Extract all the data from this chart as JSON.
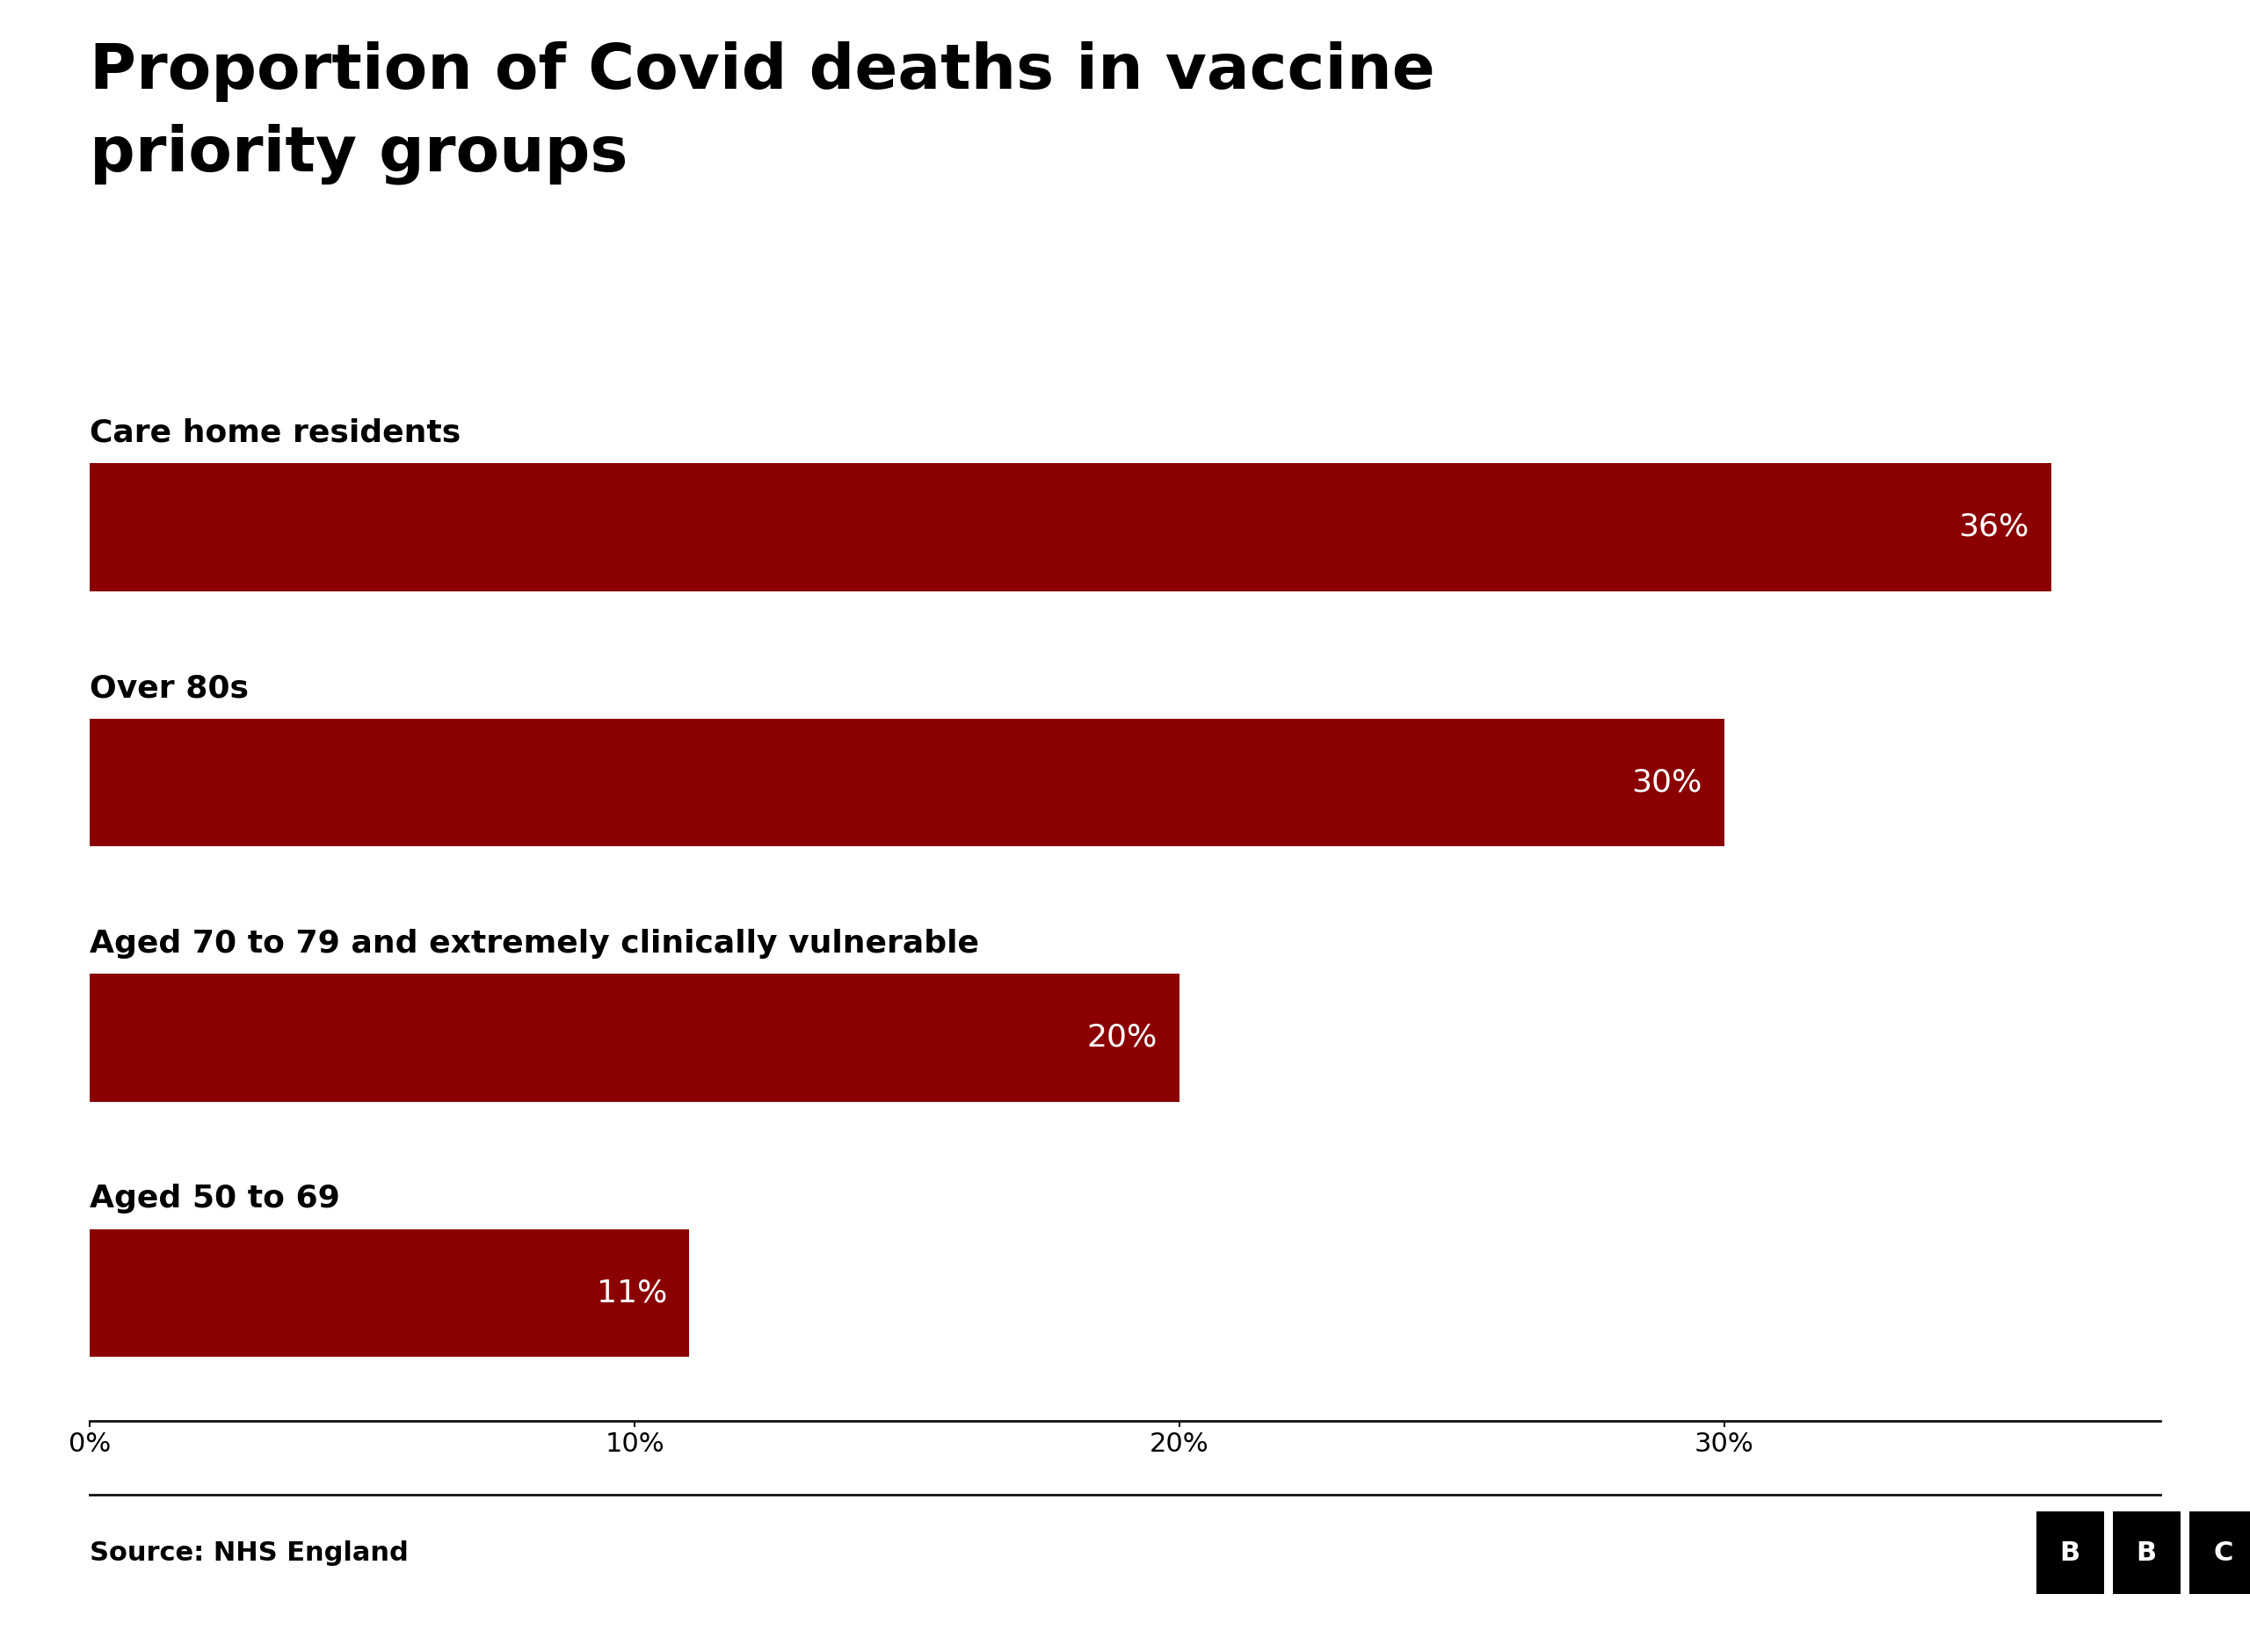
{
  "title_line1": "Proportion of Covid deaths in vaccine",
  "title_line2": "priority groups",
  "categories": [
    "Care home residents",
    "Over 80s",
    "Aged 70 to 79 and extremely clinically vulnerable",
    "Aged 50 to 69"
  ],
  "values": [
    36,
    30,
    20,
    11
  ],
  "labels": [
    "36%",
    "30%",
    "20%",
    "11%"
  ],
  "bar_color": "#8B0000",
  "background_color": "#ffffff",
  "text_color": "#000000",
  "bar_label_color": "#ffffff",
  "source_text": "Source: NHS England",
  "xlim": [
    0,
    38
  ],
  "xticks": [
    0,
    10,
    20,
    30
  ],
  "xticklabels": [
    "0%",
    "10%",
    "20%",
    "30%"
  ],
  "title_fontsize": 52,
  "category_fontsize": 26,
  "label_fontsize": 26,
  "source_fontsize": 22,
  "tick_fontsize": 22,
  "bar_height": 0.5,
  "bbc_letters": [
    "B",
    "B",
    "C"
  ]
}
